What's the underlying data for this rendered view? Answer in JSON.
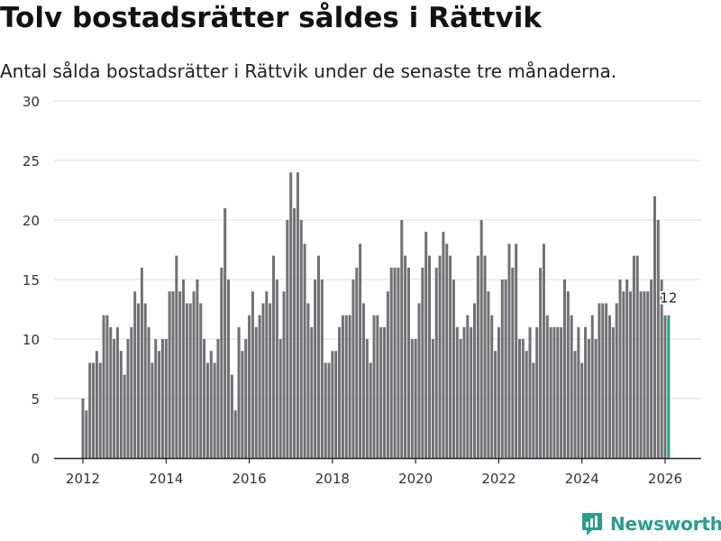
{
  "title": "Tolv bostadsrätter såldes i Rättvik",
  "subtitle": "Antal sålda bostadsrätter i Rättvik under de senaste tre månaderna.",
  "brand": "Newsworthy",
  "colors": {
    "bar": "#707075",
    "highlight": "#2a9d8f",
    "grid": "#dddddd"
  },
  "chart_data": {
    "type": "bar",
    "title": "Tolv bostadsrätter såldes i Rättvik",
    "xlabel": "",
    "ylabel": "",
    "ylim": [
      0,
      30
    ],
    "yticks": [
      0,
      5,
      10,
      15,
      20,
      25,
      30
    ],
    "xticks": [
      "2012",
      "2014",
      "2016",
      "2018",
      "2020",
      "2022",
      "2024",
      "2026"
    ],
    "start": "2012-01",
    "frequency": "monthly",
    "highlight_label": "12",
    "values": [
      5,
      4,
      8,
      8,
      9,
      8,
      12,
      12,
      11,
      10,
      11,
      9,
      7,
      10,
      11,
      14,
      13,
      16,
      13,
      11,
      8,
      10,
      9,
      10,
      10,
      14,
      14,
      17,
      14,
      15,
      13,
      13,
      14,
      15,
      13,
      10,
      8,
      9,
      8,
      10,
      16,
      21,
      15,
      7,
      4,
      11,
      9,
      10,
      12,
      14,
      11,
      12,
      13,
      14,
      13,
      17,
      15,
      10,
      14,
      20,
      24,
      21,
      24,
      20,
      18,
      13,
      11,
      15,
      17,
      15,
      8,
      8,
      9,
      9,
      11,
      12,
      12,
      12,
      15,
      16,
      18,
      13,
      10,
      8,
      12,
      12,
      11,
      11,
      14,
      16,
      16,
      16,
      20,
      17,
      16,
      10,
      10,
      13,
      16,
      19,
      17,
      10,
      16,
      17,
      19,
      18,
      17,
      15,
      11,
      10,
      11,
      12,
      11,
      13,
      17,
      20,
      17,
      14,
      12,
      9,
      11,
      15,
      15,
      18,
      16,
      18,
      10,
      10,
      9,
      11,
      8,
      11,
      16,
      18,
      12,
      11,
      11,
      11,
      11,
      15,
      14,
      12,
      9,
      11,
      8,
      11,
      10,
      12,
      10,
      13,
      13,
      13,
      12,
      11,
      13,
      15,
      14,
      15,
      14,
      17,
      17,
      14,
      14,
      14,
      15,
      22,
      20,
      15,
      12,
      12
    ]
  }
}
